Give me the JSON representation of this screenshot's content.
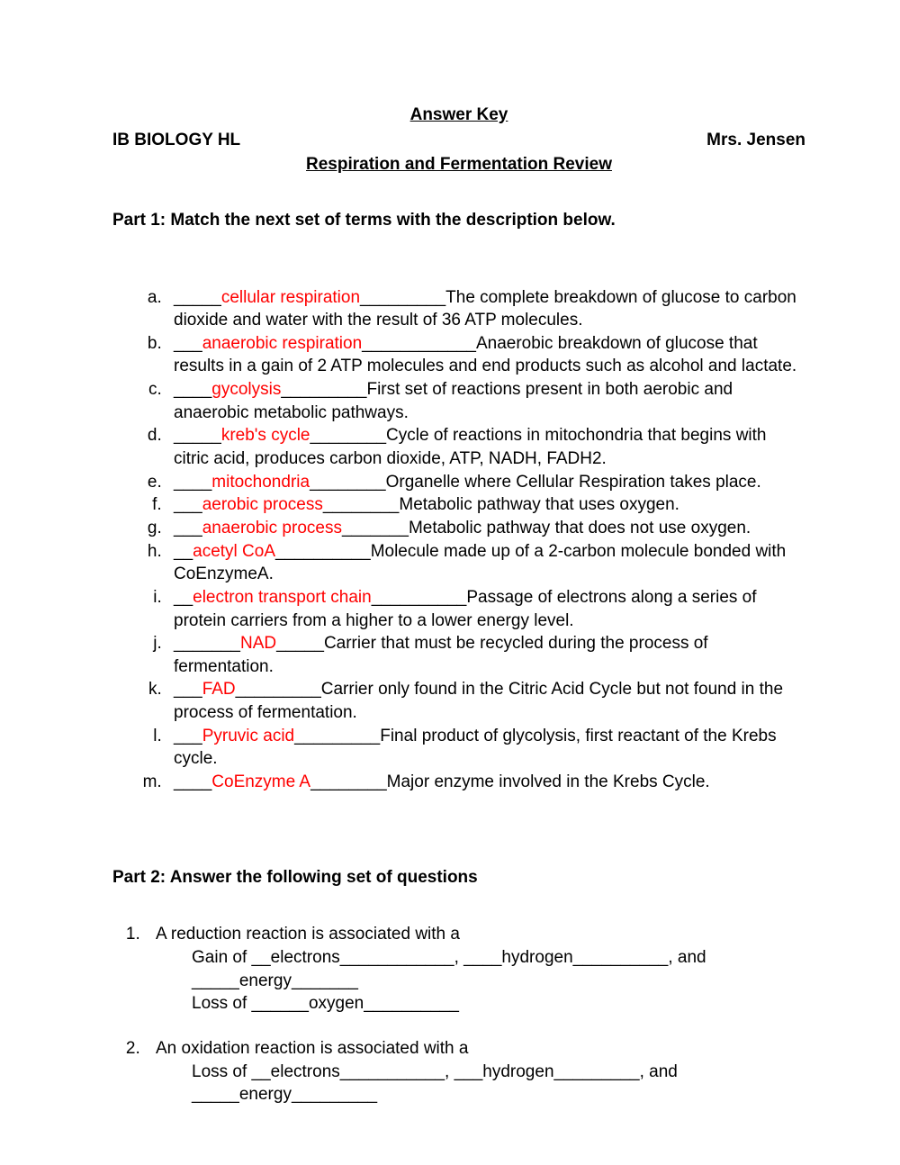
{
  "header": {
    "answerKey": "Answer Key",
    "courseLeft": "IB BIOLOGY HL",
    "teacherRight": "Mrs. Jensen",
    "subtitle": "Respiration and Fermentation Review"
  },
  "part1": {
    "heading": "Part 1: Match the next set of terms with the description below.",
    "items": [
      {
        "blankPre": "_____",
        "answer": "cellular respiration",
        "blankPost": "_________",
        "desc": "The complete breakdown of glucose to carbon dioxide and water with the result of 36 ATP molecules."
      },
      {
        "blankPre": "___",
        "answer": "anaerobic respiration",
        "blankPost": "____________",
        "desc": "Anaerobic breakdown of glucose that results in a gain of 2 ATP molecules and end products such as alcohol and lactate."
      },
      {
        "blankPre": "____",
        "answer": "gycolysis",
        "blankPost": "_________",
        "desc": "First set of reactions present in both aerobic and anaerobic metabolic pathways."
      },
      {
        "blankPre": "_____",
        "answer": "kreb's cycle",
        "blankPost": "________",
        "desc": "Cycle of reactions in mitochondria that begins with citric acid, produces carbon dioxide, ATP, NADH, FADH2."
      },
      {
        "blankPre": "____",
        "answer": "mitochondria",
        "blankPost": "________",
        "desc": "Organelle where Cellular Respiration takes place."
      },
      {
        "blankPre": "___",
        "answer": "aerobic process",
        "blankPost": "________",
        "desc": "Metabolic pathway that uses oxygen."
      },
      {
        "blankPre": "___",
        "answer": "anaerobic process",
        "blankPost": "_______",
        "desc": "Metabolic pathway that does not use oxygen."
      },
      {
        "blankPre": "__",
        "answer": "acetyl CoA",
        "blankPost": "__________",
        "desc": "Molecule made up of a 2-carbon molecule bonded with CoEnzymeA."
      },
      {
        "blankPre": "__",
        "answer": "electron transport chain",
        "blankPost": "__________",
        "desc": "Passage of electrons along a series of protein carriers from a higher to a lower energy level."
      },
      {
        "blankPre": "_______",
        "answer": "NAD",
        "blankPost": "_____",
        "desc": "Carrier that must be recycled during the process of fermentation."
      },
      {
        "blankPre": "___",
        "answer": "FAD",
        "blankPost": "_________",
        "desc": "Carrier only found in the Citric Acid Cycle but not found in the process of fermentation."
      },
      {
        "blankPre": "___",
        "answer": "Pyruvic acid",
        "blankPost": "_________",
        "desc": "Final product of glycolysis, first reactant of the Krebs cycle."
      },
      {
        "blankPre": "____",
        "answer": "CoEnzyme A",
        "blankPost": "________",
        "desc": "Major enzyme involved in the Krebs Cycle."
      }
    ]
  },
  "part2": {
    "heading": "Part 2: Answer the following set of questions",
    "q1": {
      "prompt": "A reduction reaction is associated with a",
      "line1a": "Gain of __",
      "line1b": "electrons",
      "line1c": "____________, ____",
      "line1d": "hydrogen",
      "line1e": "__________, and",
      "line2a": "_____",
      "line2b": "energy",
      "line2c": "_______",
      "line3a": "Loss of ______",
      "line3b": "oxygen",
      "line3c": "__________"
    },
    "q2": {
      "prompt": "An oxidation reaction is associated with a",
      "line1a": "Loss of __",
      "line1b": "electrons",
      "line1c": "___________, ___",
      "line1d": "hydrogen",
      "line1e": "_________, and",
      "line2a": "_____",
      "line2b": "energy",
      "line2c": "_________"
    }
  },
  "colors": {
    "answer": "#ff0000",
    "text": "#000000",
    "background": "#ffffff"
  },
  "typography": {
    "fontFamily": "Verdana",
    "baseFontSizePx": 19,
    "lineHeight": 1.35
  }
}
